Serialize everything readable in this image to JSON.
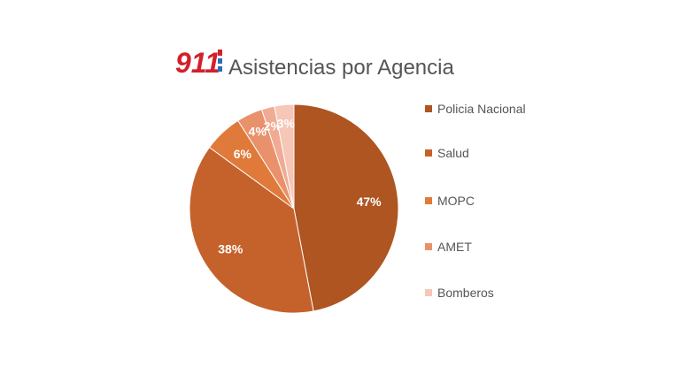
{
  "logo": "911",
  "chart_data": {
    "type": "pie",
    "title": "Asistencias por Agencia",
    "categories": [
      "Policia Nacional",
      "Salud",
      "MOPC",
      "AMET",
      null,
      "Bomberos"
    ],
    "values": [
      47,
      38,
      6,
      4,
      2,
      3
    ],
    "colors": [
      "#ae5521",
      "#c5622b",
      "#e07a3a",
      "#e8916b",
      "#f0ab94",
      "#f6c6b6"
    ],
    "legend": "right"
  }
}
